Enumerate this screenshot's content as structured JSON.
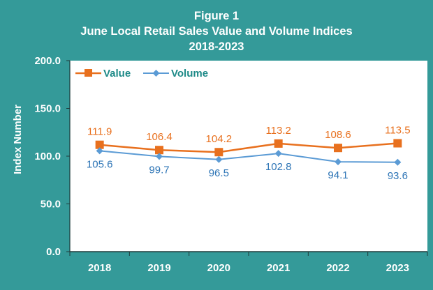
{
  "chart_data": {
    "type": "line",
    "title_lines": [
      "Figure 1",
      "June Local Retail Sales Value and Volume Indices",
      "2018-2023"
    ],
    "categories": [
      "2018",
      "2019",
      "2020",
      "2021",
      "2022",
      "2023"
    ],
    "ylabel": "Index Number",
    "xlabel": "",
    "ylim": [
      0,
      200
    ],
    "yticks": [
      "0.0",
      "50.0",
      "100.0",
      "150.0",
      "200.0"
    ],
    "ytick_values": [
      0,
      50,
      100,
      150,
      200
    ],
    "grid": false,
    "legend_position": "top-left",
    "series": [
      {
        "name": "Value",
        "values": [
          111.9,
          106.4,
          104.2,
          113.2,
          108.6,
          113.5
        ],
        "labels": [
          "111.9",
          "106.4",
          "104.2",
          "113.2",
          "108.6",
          "113.5"
        ],
        "color": "#e8701e",
        "marker": "square",
        "label_position": "above"
      },
      {
        "name": "Volume",
        "values": [
          105.6,
          99.7,
          96.5,
          102.8,
          94.1,
          93.6
        ],
        "labels": [
          "105.6",
          "99.7",
          "96.5",
          "102.8",
          "94.1",
          "93.6"
        ],
        "color": "#5b9bd5",
        "marker": "diamond",
        "label_position": "below"
      }
    ],
    "colors": {
      "background": "#349a99",
      "plot_background": "#ffffff",
      "value_label": "#e8701e",
      "volume_label": "#2e75b6",
      "text": "#ffffff",
      "legend_text": "#1e8a88"
    }
  }
}
